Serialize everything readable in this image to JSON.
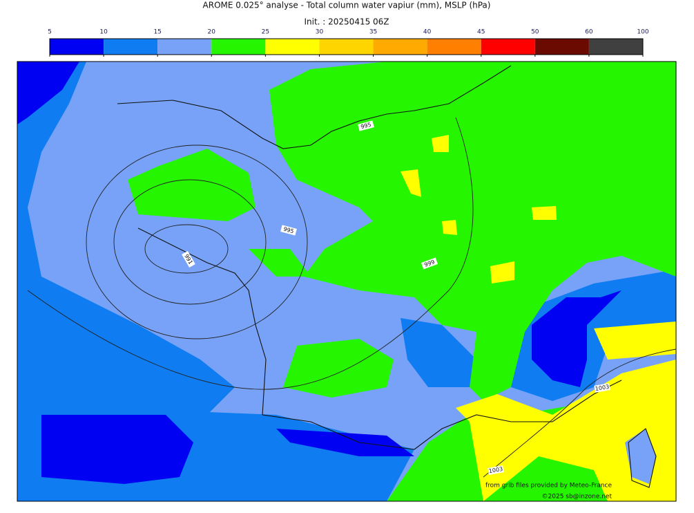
{
  "header": {
    "title": "AROME 0.025° analyse - Total column water vapiur (mm), MSLP (hPa)",
    "init": "Init. : 20250415 06Z"
  },
  "colorbar": {
    "ticks": [
      5,
      10,
      15,
      20,
      25,
      30,
      35,
      40,
      45,
      50,
      60,
      100
    ],
    "colors": [
      "#0000f2",
      "#0f7cf2",
      "#77a2f7",
      "#26f500",
      "#ffff00",
      "#ffd500",
      "#ffaa00",
      "#ff7f00",
      "#ff0000",
      "#6b0a00",
      "#404040"
    ]
  },
  "isobar_labels": [
    "995",
    "995",
    "991",
    "999",
    "1003",
    "1003"
  ],
  "credits": [
    "from grib files provided by Meteo-France",
    "©2025 sb@inzone.net"
  ]
}
